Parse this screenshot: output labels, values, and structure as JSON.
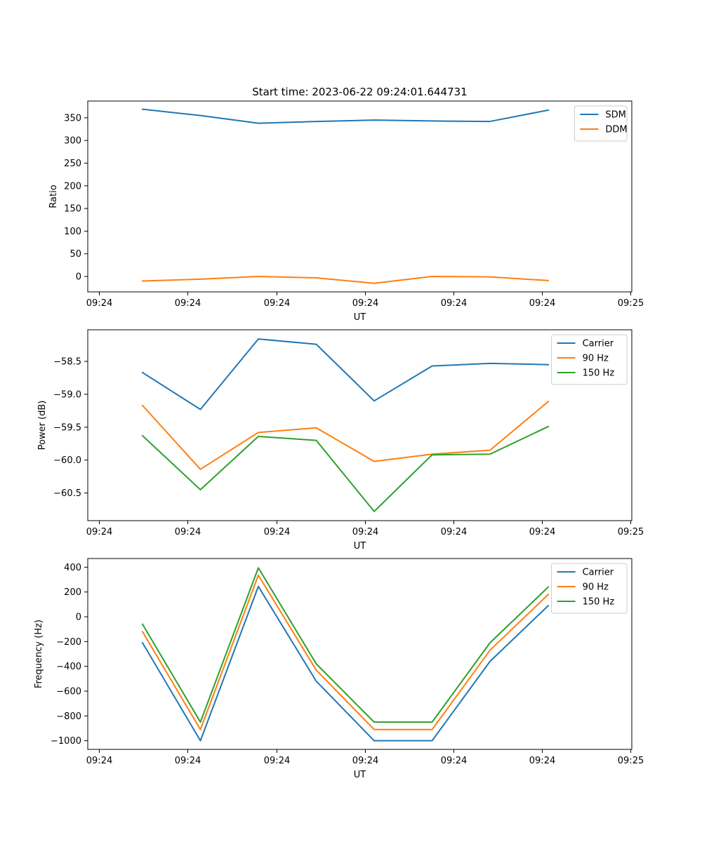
{
  "figure": {
    "title": "Start time: 2023-06-22 09:24:01.644731"
  },
  "chart_data": [
    {
      "type": "line",
      "title": "Start time: 2023-06-22 09:24:01.644731",
      "xlabel": "UT",
      "ylabel": "Ratio",
      "x_tick_labels": [
        "09:24",
        "09:24",
        "09:24",
        "09:24",
        "09:24",
        "09:24",
        "09:25"
      ],
      "ylim": [
        -34,
        387
      ],
      "y_ticks": [
        0,
        50,
        100,
        150,
        200,
        250,
        300,
        350
      ],
      "y_tick_labels": [
        "0",
        "50",
        "100",
        "150",
        "200",
        "250",
        "300",
        "350"
      ],
      "grid": false,
      "legend": "upper right",
      "series": [
        {
          "name": "SDM",
          "color": "#1f77b4",
          "values": [
            369,
            355,
            338,
            342,
            345,
            343,
            342,
            367
          ]
        },
        {
          "name": "DDM",
          "color": "#ff7f0e",
          "values": [
            -10,
            -6,
            0,
            -3,
            -15,
            0,
            -1,
            -9
          ]
        }
      ]
    },
    {
      "type": "line",
      "xlabel": "UT",
      "ylabel": "Power (dB)",
      "x_tick_labels": [
        "09:24",
        "09:24",
        "09:24",
        "09:24",
        "09:24",
        "09:24",
        "09:25"
      ],
      "ylim": [
        -60.92,
        -58.02
      ],
      "y_ticks": [
        -60.5,
        -60.0,
        -59.5,
        -59.0,
        -58.5
      ],
      "y_tick_labels": [
        "−60.5",
        "−60.0",
        "−59.5",
        "−59.0",
        "−58.5"
      ],
      "grid": false,
      "legend": "upper right",
      "series": [
        {
          "name": "Carrier",
          "color": "#1f77b4",
          "values": [
            -58.67,
            -59.23,
            -58.16,
            -58.24,
            -59.1,
            -58.57,
            -58.53,
            -58.55
          ]
        },
        {
          "name": "90 Hz",
          "color": "#ff7f0e",
          "values": [
            -59.17,
            -60.14,
            -59.58,
            -59.51,
            -60.02,
            -59.91,
            -59.85,
            -59.11
          ]
        },
        {
          "name": "150 Hz",
          "color": "#2ca02c",
          "values": [
            -59.63,
            -60.45,
            -59.64,
            -59.7,
            -60.78,
            -59.92,
            -59.91,
            -59.49
          ]
        }
      ]
    },
    {
      "type": "line",
      "xlabel": "UT",
      "ylabel": "Frequency (Hz)",
      "x_tick_labels": [
        "09:24",
        "09:24",
        "09:24",
        "09:24",
        "09:24",
        "09:24",
        "09:25"
      ],
      "ylim": [
        -1070,
        470
      ],
      "y_ticks": [
        -1000,
        -800,
        -600,
        -400,
        -200,
        0,
        200,
        400
      ],
      "y_tick_labels": [
        "−1000",
        "−800",
        "−600",
        "−400",
        "−200",
        "0",
        "200",
        "400"
      ],
      "grid": false,
      "legend": "upper right",
      "series": [
        {
          "name": "Carrier",
          "color": "#1f77b4",
          "values": [
            -210,
            -1000,
            245,
            -520,
            -1000,
            -1000,
            -360,
            90
          ]
        },
        {
          "name": "90 Hz",
          "color": "#ff7f0e",
          "values": [
            -120,
            -910,
            335,
            -430,
            -910,
            -910,
            -270,
            180
          ]
        },
        {
          "name": "150 Hz",
          "color": "#2ca02c",
          "values": [
            -60,
            -850,
            395,
            -380,
            -850,
            -850,
            -210,
            240
          ]
        }
      ]
    }
  ]
}
